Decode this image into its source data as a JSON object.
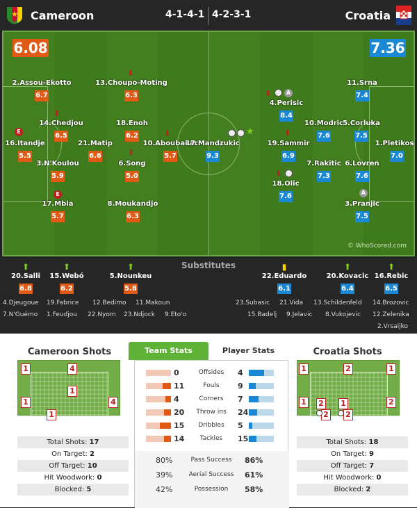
{
  "header": {
    "home_team": "Cameroon",
    "away_team": "Croatia",
    "home_formation": "4-1-4-1",
    "away_formation": "4-2-3-1"
  },
  "pitch": {
    "home_rating": "6.08",
    "away_rating": "7.36",
    "watermark": "© WhoScored.com",
    "home_players": [
      {
        "name": "2.Assou-Ekotto",
        "rating": "6.7"
      },
      {
        "name": "13.Choupo-Moting",
        "rating": "6.3"
      },
      {
        "name": "14.Chedjou",
        "rating": "6.5"
      },
      {
        "name": "18.Enoh",
        "rating": "6.2"
      },
      {
        "name": "16.Itandje",
        "rating": "5.5"
      },
      {
        "name": "21.Matip",
        "rating": "6.6"
      },
      {
        "name": "10.Aboubakar",
        "rating": "5.7"
      },
      {
        "name": "3.N'Koulou",
        "rating": "5.9"
      },
      {
        "name": "6.Song",
        "rating": "5.0"
      },
      {
        "name": "17.Mbia",
        "rating": "5.7"
      },
      {
        "name": "8.Moukandjo",
        "rating": "6.3"
      }
    ],
    "away_players": [
      {
        "name": "11.Srna",
        "rating": "7.4"
      },
      {
        "name": "4.Perisic",
        "rating": "8.4"
      },
      {
        "name": "10.Modric",
        "rating": "7.6"
      },
      {
        "name": "5.Corluka",
        "rating": "7.5"
      },
      {
        "name": "17.Mandzukic",
        "rating": "9.3"
      },
      {
        "name": "19.Sammir",
        "rating": "6.9"
      },
      {
        "name": "1.Pletikosa",
        "rating": "7.0"
      },
      {
        "name": "7.Rakitic",
        "rating": "7.3"
      },
      {
        "name": "6.Lovren",
        "rating": "7.6"
      },
      {
        "name": "18.Olic",
        "rating": "7.6"
      },
      {
        "name": "3.Pranjic",
        "rating": "7.5"
      }
    ],
    "event_labels": {
      "card": "E",
      "assist": "A"
    }
  },
  "substitutes": {
    "title": "Substitutes",
    "home_subs": [
      {
        "name": "20.Salli",
        "rating": "6.8"
      },
      {
        "name": "15.Webó",
        "rating": "6.2"
      },
      {
        "name": "5.Nounkeu",
        "rating": "5.8"
      }
    ],
    "away_subs": [
      {
        "name": "22.Eduardo",
        "rating": "6.1"
      },
      {
        "name": "20.Kovacic",
        "rating": "6.4"
      },
      {
        "name": "16.Rebic",
        "rating": "6.5"
      }
    ],
    "home_bench": [
      "4.Djeugoue",
      "19.Fabrice",
      "12.Bedimo",
      "11.Makoun",
      "7.N'Guémo",
      "1.Feudjou",
      "22.Nyom",
      "23.Ndjock",
      "9.Eto'o"
    ],
    "away_bench": [
      "23.Subasic",
      "21.Vida",
      "13.Schildenfeld",
      "14.Brozovic",
      "15.Badelj",
      "9.Jelavic",
      "8.Vukojevic",
      "12.Zelenika",
      "2.Vrsaljko"
    ]
  },
  "home_shots": {
    "title": "Cameroon Shots",
    "zones": [
      "1",
      "4",
      "1",
      "1",
      "4",
      "1"
    ],
    "summary": [
      {
        "label": "Total Shots:",
        "value": "17"
      },
      {
        "label": "On Target:",
        "value": "2"
      },
      {
        "label": "Off Target:",
        "value": "10"
      },
      {
        "label": "Hit Woodwork:",
        "value": "0"
      },
      {
        "label": "Blocked:",
        "value": "5"
      }
    ]
  },
  "away_shots": {
    "title": "Croatia Shots",
    "zones": [
      "1",
      "2",
      "1",
      "1",
      "2",
      "1",
      "2",
      "2",
      "2"
    ],
    "summary": [
      {
        "label": "Total Shots:",
        "value": "18"
      },
      {
        "label": "On Target:",
        "value": "9"
      },
      {
        "label": "Off Target:",
        "value": "7"
      },
      {
        "label": "Hit Woodwork:",
        "value": "0"
      },
      {
        "label": "Blocked:",
        "value": "2"
      }
    ]
  },
  "stats_tabs": {
    "team_stats": "Team Stats",
    "player_stats": "Player Stats"
  },
  "team_stats": [
    {
      "label": "Offsides",
      "home": "0",
      "away": "4",
      "home_frac": 0.0,
      "away_frac": 1.0
    },
    {
      "label": "Fouls",
      "home": "11",
      "away": "9",
      "home_frac": 0.55,
      "away_frac": 0.45
    },
    {
      "label": "Corners",
      "home": "4",
      "away": "7",
      "home_frac": 0.36,
      "away_frac": 0.64
    },
    {
      "label": "Throw ins",
      "home": "20",
      "away": "24",
      "home_frac": 0.45,
      "away_frac": 0.55
    },
    {
      "label": "Dribbles",
      "home": "15",
      "away": "5",
      "home_frac": 0.75,
      "away_frac": 0.25
    },
    {
      "label": "Tackles",
      "home": "14",
      "away": "15",
      "home_frac": 0.48,
      "away_frac": 0.52
    }
  ],
  "percent_stats": [
    {
      "label": "Pass Success",
      "home": "80%",
      "away": "86%"
    },
    {
      "label": "Aerial Success",
      "home": "39%",
      "away": "61%"
    },
    {
      "label": "Possession",
      "home": "42%",
      "away": "58%"
    }
  ],
  "colors": {
    "home": "#e05a16",
    "away": "#1a88d4",
    "pitch": "#3f7a1c",
    "accent": "#5eb236"
  }
}
